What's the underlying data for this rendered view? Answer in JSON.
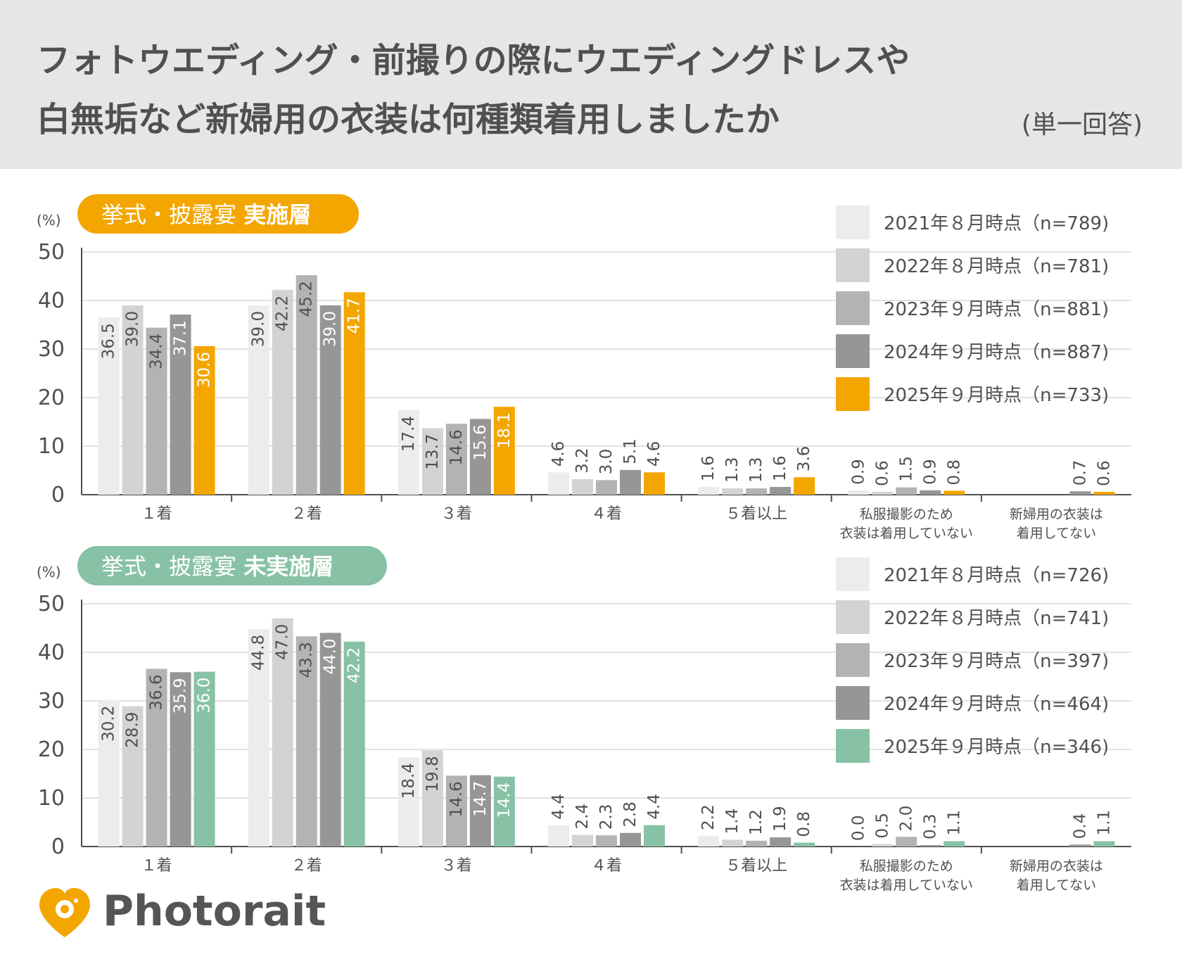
{
  "title": {
    "line1": "フォトウエディング・前撮りの際にウエディングドレスや",
    "line2": "白無垢など新婦用の衣装は何種類着用しましたか",
    "question_type": "(単一回答)"
  },
  "brand": {
    "name": "Photorait",
    "logo_icon": "heart-camera-icon"
  },
  "colors": {
    "series": [
      "#ececec",
      "#d3d3d3",
      "#b3b3b3",
      "#969696"
    ],
    "accent_held": "#f4a600",
    "accent_not_held": "#88c2a6"
  },
  "chart_data": [
    {
      "type": "bar",
      "badge": "挙式・披露宴",
      "badge_bold": "実施層",
      "unit": "(%)",
      "ylim": [
        0,
        50
      ],
      "yticks": [
        0,
        10,
        20,
        30,
        40,
        50
      ],
      "grid": true,
      "legend_position": "top-right",
      "categories": [
        "１着",
        "２着",
        "３着",
        "４着",
        "５着以上",
        "私服撮影のため\n衣装は着用していない",
        "新婦用の衣装は\n着用してない"
      ],
      "series": [
        {
          "name": "2021年８月時点（n=789)",
          "values": [
            36.5,
            39.0,
            17.4,
            4.6,
            1.6,
            0.9,
            null
          ]
        },
        {
          "name": "2022年８月時点（n=781)",
          "values": [
            39.0,
            42.2,
            13.7,
            3.2,
            1.3,
            0.6,
            null
          ]
        },
        {
          "name": "2023年９月時点（n=881)",
          "values": [
            34.4,
            45.2,
            14.6,
            3.0,
            1.3,
            1.5,
            null
          ]
        },
        {
          "name": "2024年９月時点（n=887)",
          "values": [
            37.1,
            39.0,
            15.6,
            5.1,
            1.6,
            0.9,
            0.7
          ]
        },
        {
          "name": "2025年９月時点（n=733)",
          "values": [
            30.6,
            41.7,
            18.1,
            4.6,
            3.6,
            0.8,
            0.6
          ]
        }
      ]
    },
    {
      "type": "bar",
      "badge": "挙式・披露宴",
      "badge_bold": "未実施層",
      "unit": "(%)",
      "ylim": [
        0,
        50
      ],
      "yticks": [
        0,
        10,
        20,
        30,
        40,
        50
      ],
      "grid": true,
      "legend_position": "top-right",
      "categories": [
        "１着",
        "２着",
        "３着",
        "４着",
        "５着以上",
        "私服撮影のため\n衣装は着用していない",
        "新婦用の衣装は\n着用してない"
      ],
      "series": [
        {
          "name": "2021年８月時点（n=726)",
          "values": [
            30.2,
            44.8,
            18.4,
            4.4,
            2.2,
            0.0,
            null
          ]
        },
        {
          "name": "2022年８月時点（n=741)",
          "values": [
            28.9,
            47.0,
            19.8,
            2.4,
            1.4,
            0.5,
            null
          ]
        },
        {
          "name": "2023年９月時点（n=397)",
          "values": [
            36.6,
            43.3,
            14.6,
            2.3,
            1.2,
            2.0,
            null
          ]
        },
        {
          "name": "2024年９月時点（n=464)",
          "values": [
            35.9,
            44.0,
            14.7,
            2.8,
            1.9,
            0.3,
            0.4
          ]
        },
        {
          "name": "2025年９月時点（n=346)",
          "values": [
            36.0,
            42.2,
            14.4,
            4.4,
            0.8,
            1.1,
            1.1
          ]
        }
      ]
    }
  ]
}
